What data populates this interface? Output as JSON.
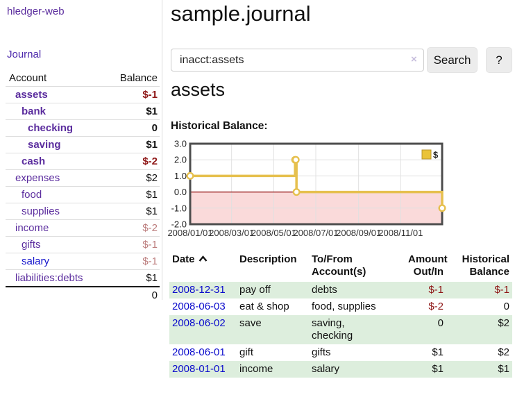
{
  "app": {
    "title": "hledger-web"
  },
  "sidebar": {
    "journal_link": "Journal",
    "table": {
      "headers": {
        "account": "Account",
        "balance": "Balance"
      },
      "accounts": [
        {
          "name": "assets",
          "balance": "$-1",
          "indent": 1,
          "bold": true,
          "negative": true
        },
        {
          "name": "bank",
          "balance": "$1",
          "indent": 2,
          "bold": true,
          "negative": false
        },
        {
          "name": "checking",
          "balance": "0",
          "indent": 3,
          "bold": true,
          "negative": false
        },
        {
          "name": "saving",
          "balance": "$1",
          "indent": 3,
          "bold": true,
          "negative": false
        },
        {
          "name": "cash",
          "balance": "$-2",
          "indent": 2,
          "bold": true,
          "negative": true
        },
        {
          "name": "expenses",
          "balance": "$2",
          "indent": 1,
          "bold": false,
          "negative": false
        },
        {
          "name": "food",
          "balance": "$1",
          "indent": 2,
          "bold": false,
          "negative": false
        },
        {
          "name": "supplies",
          "balance": "$1",
          "indent": 2,
          "bold": false,
          "negative": false
        },
        {
          "name": "income",
          "balance": "$-2",
          "indent": 1,
          "bold": false,
          "negative": true
        },
        {
          "name": "gifts",
          "balance": "$-1",
          "indent": 2,
          "bold": false,
          "negative": true
        },
        {
          "name": "salary",
          "balance": "$-1",
          "indent": 2,
          "bold": false,
          "negative": true,
          "link_color": "blue"
        },
        {
          "name": "liabilities:debts",
          "balance": "$1",
          "indent": 1,
          "bold": false,
          "negative": false
        }
      ],
      "total": "0"
    }
  },
  "main": {
    "title": "sample.journal",
    "search": {
      "value": "inacct:assets",
      "clear_icon": "×",
      "button": "Search",
      "help_button": "?"
    },
    "account_heading": "assets",
    "chart_label": "Historical Balance:",
    "register": {
      "headers": {
        "date": "Date",
        "description": "Description",
        "tofrom": "To/From\nAccount(s)",
        "amount": "Amount\nOut/In",
        "balance": "Historical\nBalance"
      },
      "rows": [
        {
          "date": "2008-12-31",
          "description": "pay off",
          "accounts": "debts",
          "amount": "$-1",
          "balance": "$-1",
          "striped": true
        },
        {
          "date": "2008-06-03",
          "description": "eat & shop",
          "accounts": "food, supplies",
          "amount": "$-2",
          "balance": "0",
          "striped": false
        },
        {
          "date": "2008-06-02",
          "description": "save",
          "accounts": "saving,\nchecking",
          "amount": "0",
          "balance": "$2",
          "striped": true
        },
        {
          "date": "2008-06-01",
          "description": "gift",
          "accounts": "gifts",
          "amount": "$1",
          "balance": "$2",
          "striped": false
        },
        {
          "date": "2008-01-01",
          "description": "income",
          "accounts": "salary",
          "amount": "$1",
          "balance": "$1",
          "striped": true
        }
      ]
    }
  },
  "chart_data": {
    "type": "line",
    "step": true,
    "title": "Historical Balance",
    "legend": [
      {
        "label": "$",
        "color": "#eac338"
      }
    ],
    "x": [
      "2008-01-01",
      "2008-06-01",
      "2008-06-02",
      "2008-06-03",
      "2008-12-31"
    ],
    "values": [
      1,
      2,
      2,
      0,
      -1
    ],
    "x_range": [
      "2008-01-01",
      "2008-12-31"
    ],
    "x_tick_dates": [
      "2008-01-01",
      "2008-03-01",
      "2008-05-01",
      "2008-07-01",
      "2008-09-01",
      "2008-11-01"
    ],
    "x_tick_labels": [
      "2008/01/01",
      "2008/03/01",
      "2008/05/01",
      "2008/07/01",
      "2008/09/01",
      "2008/11/01"
    ],
    "y_ticks": [
      "3.0",
      "2.0",
      "1.0",
      "0.0",
      "-1.0",
      "-2.0"
    ],
    "ylim": [
      -2,
      3
    ],
    "grid": true,
    "legend_position": "top-right",
    "series_color": "#e6c04e",
    "negative_region_fill": "#fadada",
    "zero_line_color": "#8b0000",
    "grid_color": "#e0e0e0",
    "border_color": "#4d4d4d"
  },
  "colors": {
    "accent_purple": "#5b2d9e",
    "link_blue": "#0b0bcc",
    "negative_red": "#8e1616",
    "negative_muted": "#bc7d7d",
    "row_stripe_green": "#ddeedd"
  }
}
